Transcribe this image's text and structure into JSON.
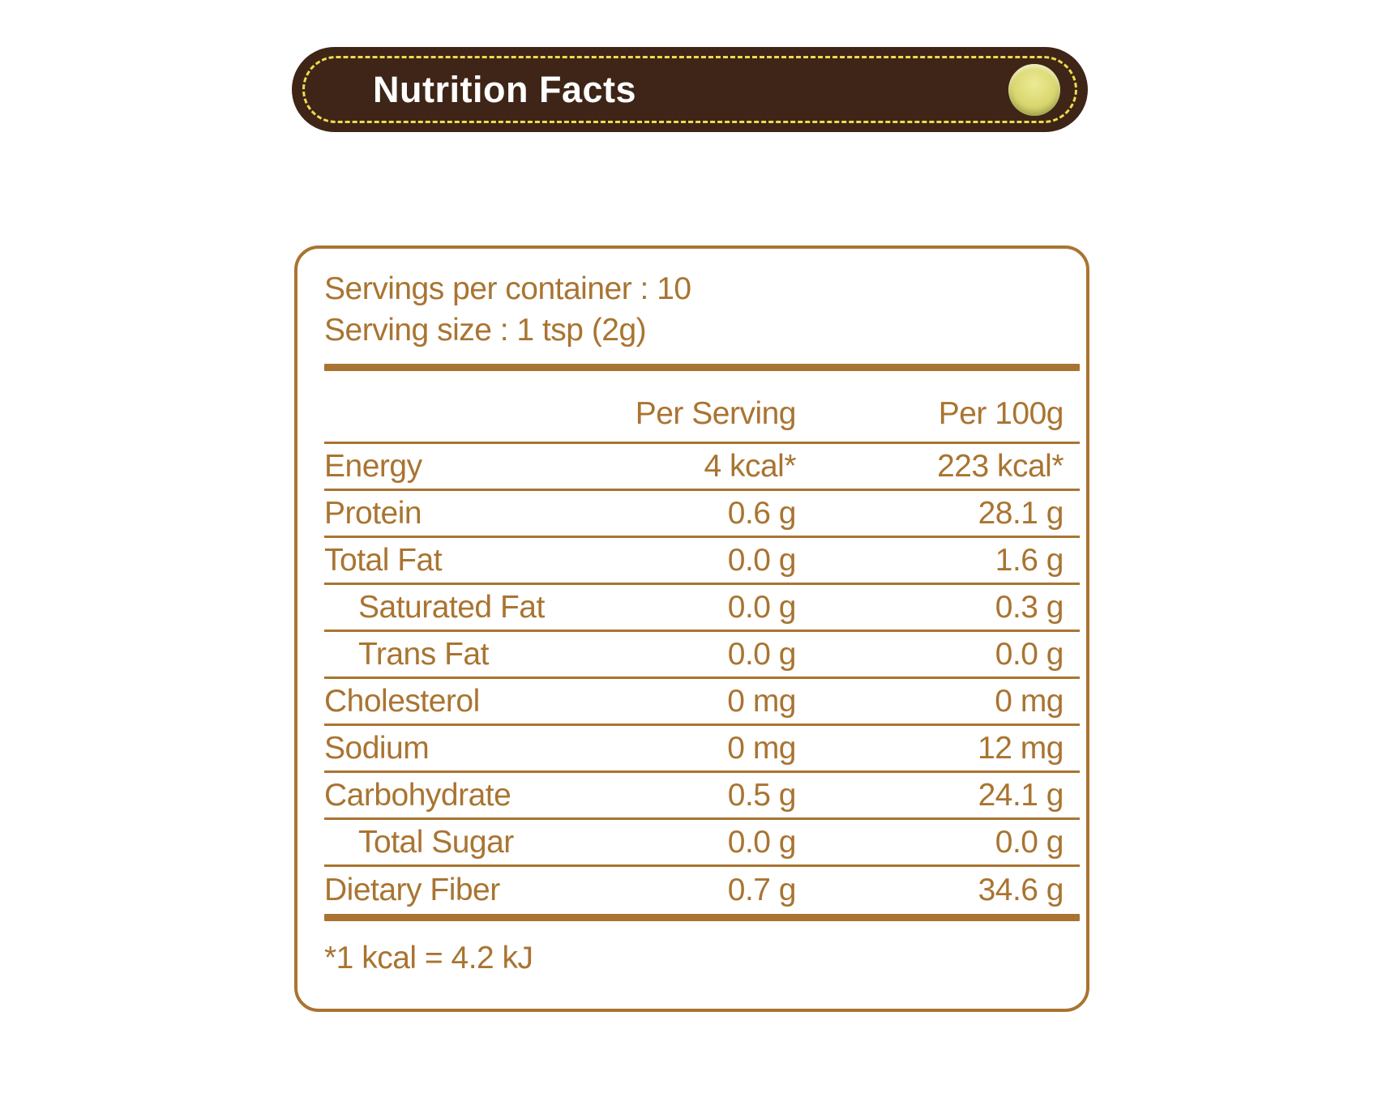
{
  "header": {
    "title": "Nutrition Facts"
  },
  "panel": {
    "servings_line": "Servings per container : 10",
    "serving_size_line": "Serving size : 1 tsp (2g)",
    "columns": {
      "per_serving": "Per Serving",
      "per_100g": "Per 100g"
    },
    "rows": [
      {
        "label": "Energy",
        "per_serving": "4 kcal*",
        "per_100g": "223 kcal*",
        "indent": false
      },
      {
        "label": "Protein",
        "per_serving": "0.6 g",
        "per_100g": "28.1 g",
        "indent": false
      },
      {
        "label": "Total Fat",
        "per_serving": "0.0 g",
        "per_100g": "1.6 g",
        "indent": false
      },
      {
        "label": "Saturated Fat",
        "per_serving": "0.0 g",
        "per_100g": "0.3 g",
        "indent": true
      },
      {
        "label": "Trans Fat",
        "per_serving": "0.0 g",
        "per_100g": "0.0 g",
        "indent": true
      },
      {
        "label": "Cholesterol",
        "per_serving": "0 mg",
        "per_100g": "0 mg",
        "indent": false
      },
      {
        "label": "Sodium",
        "per_serving": "0 mg",
        "per_100g": "12 mg",
        "indent": false
      },
      {
        "label": "Carbohydrate",
        "per_serving": "0.5 g",
        "per_100g": "24.1 g",
        "indent": false
      },
      {
        "label": "Total Sugar",
        "per_serving": "0.0 g",
        "per_100g": "0.0 g",
        "indent": true
      },
      {
        "label": "Dietary Fiber",
        "per_serving": "0.7 g",
        "per_100g": "34.6 g",
        "indent": false
      }
    ],
    "footnote": "*1 kcal = 4.2 kJ"
  },
  "colors": {
    "dark_brown": "#3E2517",
    "golden_brown": "#A97431",
    "dash_yellow": "#EDDB4F",
    "rivet_yellow": "#D9D871",
    "title_white": "#FFFFFF"
  }
}
